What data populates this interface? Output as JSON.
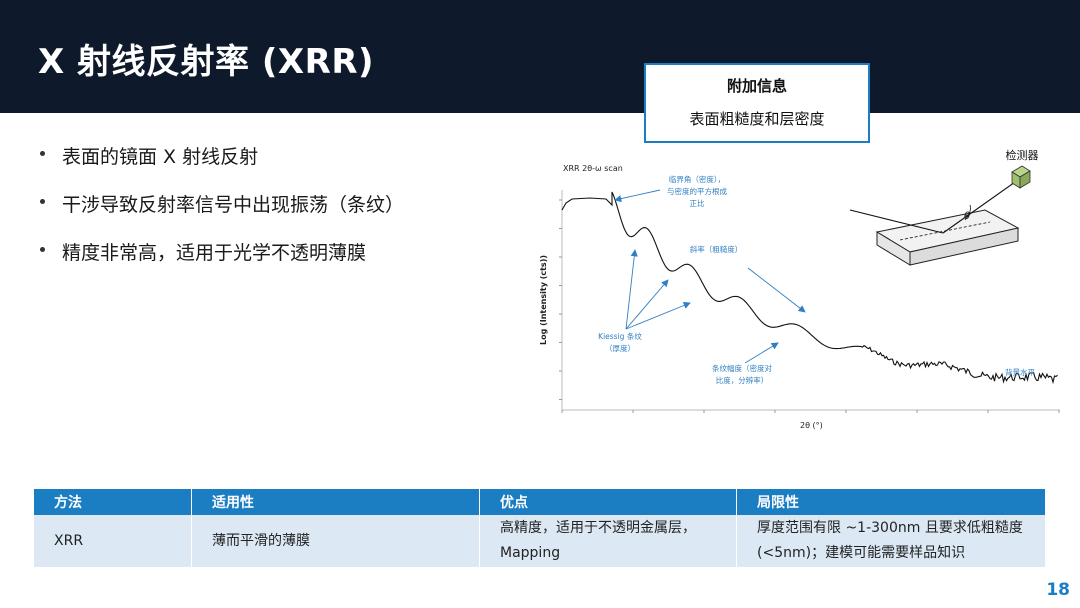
{
  "slide": {
    "title": "X 射线反射率 (XRR)",
    "page_number": "18"
  },
  "info_box": {
    "heading": "附加信息",
    "body": "表面粗糙度和层密度"
  },
  "bullets": [
    "表面的镜面 X 射线反射",
    "干涉导致反射率信号中出现振荡（条纹）",
    "精度非常高，适用于光学不透明薄膜"
  ],
  "figure": {
    "plot_title": "XRR 2θ-ω scan",
    "xlabel": "2θ (°)",
    "ylabel": "Log (Intensity (cts))",
    "annotations": {
      "critical_angle": [
        "临界角（密度），",
        "与密度的平方根成",
        "正比"
      ],
      "slope": "斜率（粗糙度）",
      "kiessig": [
        "Kiessig 条纹",
        "（厚度）"
      ],
      "amplitude": [
        "条纹幅度（密度对",
        "比度，分辨率）"
      ],
      "background": "背景水平"
    },
    "detector_label": "检测器",
    "angle_symbol": "θ"
  },
  "table": {
    "headers": [
      "方法",
      "适用性",
      "优点",
      "局限性"
    ],
    "rows": [
      {
        "method": "XRR",
        "applicability": "薄而平滑的薄膜",
        "advantages": [
          "高精度，适用于不透明金属层，",
          "Mapping"
        ],
        "limitations": [
          "厚度范围有限 ~1-300nm 且要求低粗糙度",
          "(<5nm)；建模可能需要样品知识"
        ]
      }
    ]
  },
  "colors": {
    "header_bg": "#0e1a2b",
    "accent": "#1b7ec2",
    "table_row": "#dce9f5",
    "annotation": "#2f7fc4"
  }
}
